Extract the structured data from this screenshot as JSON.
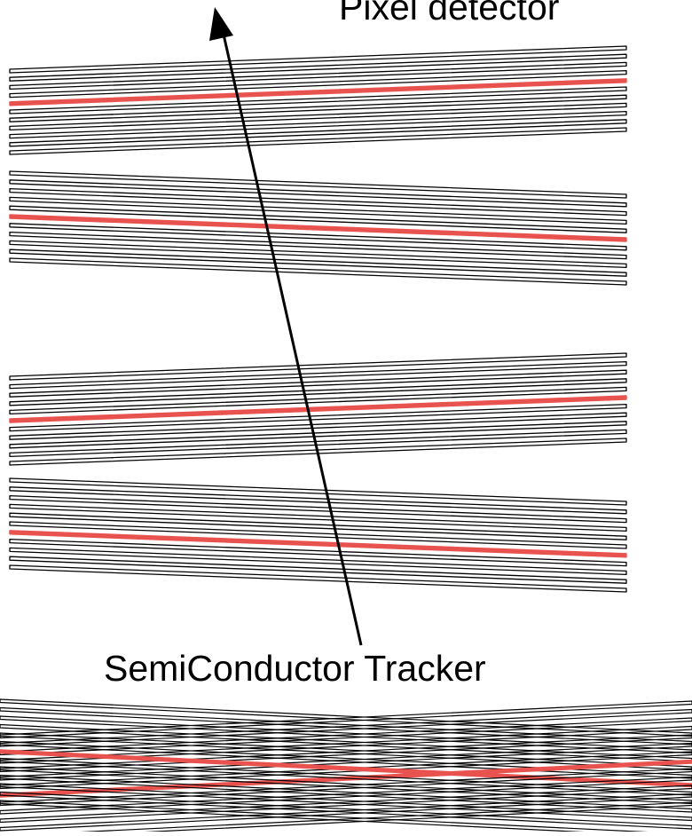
{
  "labels": {
    "top": "Pixel detector",
    "bottom": "SemiConductor Tracker"
  },
  "colors": {
    "outline": "#000000",
    "highlight": "#e8524f",
    "background": "#ffffff"
  }
}
